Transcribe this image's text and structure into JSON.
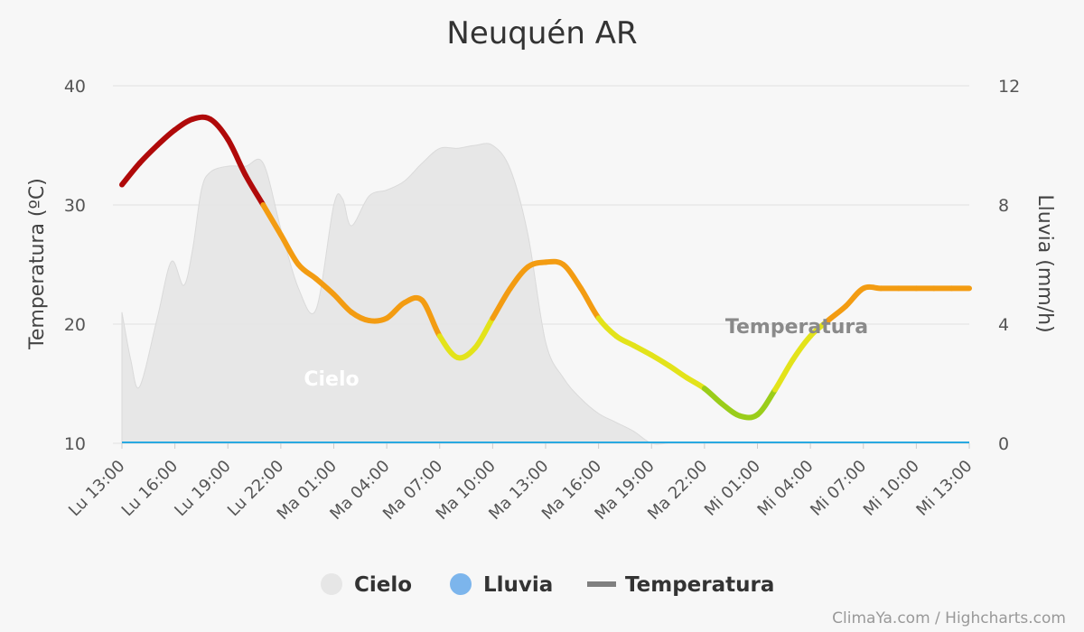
{
  "chart_data": {
    "type": "line",
    "title": "Neuquén AR",
    "x_tick_labels": [
      "Lu 13:00",
      "Lu 16:00",
      "Lu 19:00",
      "Lu 22:00",
      "Ma 01:00",
      "Ma 04:00",
      "Ma 07:00",
      "Ma 10:00",
      "Ma 13:00",
      "Ma 16:00",
      "Ma 19:00",
      "Ma 22:00",
      "Mi 01:00",
      "Mi 04:00",
      "Mi 07:00",
      "Mi 10:00",
      "Mi 13:00"
    ],
    "y_left": {
      "label": "Temperatura (ºC)",
      "range": [
        10,
        40
      ],
      "ticks": [
        10,
        20,
        30,
        40
      ]
    },
    "y_right": {
      "label": "Lluvia (mm/h)",
      "range": [
        0,
        12
      ],
      "ticks": [
        0,
        4,
        8,
        12
      ]
    },
    "grid": true,
    "legend_position": "bottom",
    "series": [
      {
        "name": "Temperatura",
        "axis": "left",
        "color_scale": "temperature",
        "x_hours": [
          0,
          1,
          2,
          3,
          4,
          5,
          6,
          7,
          8,
          9,
          10,
          11,
          12,
          13,
          14,
          15,
          16,
          17,
          18,
          19,
          20,
          21,
          22,
          23,
          24,
          25,
          26,
          27,
          28,
          29,
          30,
          31,
          32,
          33,
          34,
          35,
          36,
          37,
          38,
          39,
          40,
          41,
          42,
          43,
          44,
          45,
          46,
          47,
          48
        ],
        "values": [
          31.7,
          33.5,
          35.0,
          36.3,
          37.2,
          37.2,
          35.5,
          32.5,
          30.0,
          27.5,
          25.0,
          23.8,
          22.5,
          21.0,
          20.3,
          20.5,
          21.8,
          22.0,
          19.0,
          17.2,
          18.0,
          20.5,
          23.0,
          24.8,
          25.2,
          25.0,
          23.0,
          20.5,
          19.0,
          18.2,
          17.4,
          16.5,
          15.5,
          14.6,
          13.3,
          12.3,
          12.4,
          14.5,
          17.0,
          19.0,
          20.3,
          21.5,
          23.0,
          23.0,
          23.0,
          23.0,
          23.0,
          23.0,
          23.0
        ]
      },
      {
        "name": "Cielo",
        "axis": "right",
        "color": "#e6e6e6",
        "type": "area",
        "x_hours": [
          0,
          0.5,
          1,
          2,
          2.8,
          3.5,
          4,
          4.5,
          5,
          6,
          7,
          8,
          9,
          10,
          11,
          12,
          12.5,
          13,
          14,
          15,
          16,
          17,
          18,
          19,
          20,
          21,
          22,
          23,
          24,
          25,
          26,
          27,
          28,
          29,
          30,
          31,
          32,
          33,
          34,
          35,
          36,
          37,
          38,
          39,
          40,
          41,
          42,
          43,
          44,
          45,
          46,
          47,
          48
        ],
        "values": [
          4.4,
          2.8,
          1.9,
          4.2,
          6.1,
          5.3,
          6.5,
          8.5,
          9.1,
          9.3,
          9.3,
          9.4,
          7.2,
          5.2,
          4.5,
          8.0,
          8.2,
          7.3,
          8.3,
          8.5,
          8.8,
          9.4,
          9.9,
          9.9,
          10.0,
          10.0,
          9.2,
          7.0,
          3.4,
          2.2,
          1.5,
          1.0,
          0.7,
          0.4,
          0.0,
          0.0,
          0.0,
          0.0,
          0.0,
          0.0,
          0.0,
          0.0,
          0.0,
          0.0,
          0.0,
          0.0,
          0.0,
          0.0,
          0.0,
          0.0,
          0.0,
          0.0,
          0.0
        ]
      },
      {
        "name": "Lluvia",
        "axis": "right",
        "color": "#7cb5ec",
        "type": "column",
        "x_hours": [
          0,
          48
        ],
        "values": [
          0,
          0
        ]
      }
    ],
    "series_labels": {
      "temperature": "Temperatura",
      "sky": "Cielo"
    },
    "legend": [
      {
        "name": "Cielo",
        "symbol": "circle",
        "color": "#e6e6e6"
      },
      {
        "name": "Lluvia",
        "symbol": "circle",
        "color": "#7cb5ec"
      },
      {
        "name": "Temperatura",
        "symbol": "line",
        "color": "#808080"
      }
    ],
    "credits": "ClimaYa.com / Highcharts.com"
  }
}
